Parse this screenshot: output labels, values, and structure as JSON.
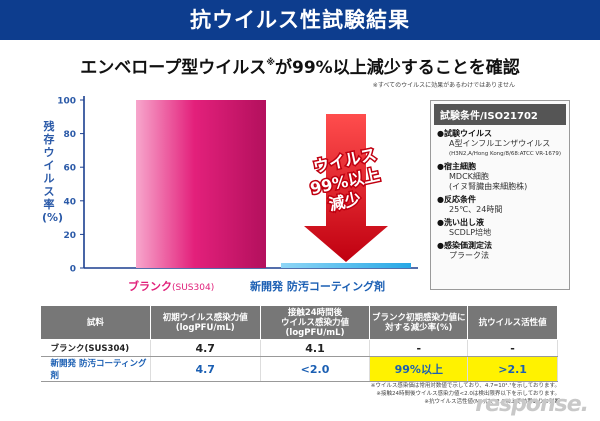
{
  "header": {
    "title": "抗ウイルス性試験結果"
  },
  "subtitle": {
    "main": "エンベロープ型ウイルス",
    "mark": "※",
    "rest": "が99%以上減少することを確認"
  },
  "footnote_top": "※すべてのウイルスに効果があるわけではありません",
  "chart_data": {
    "type": "bar",
    "title": "",
    "ylabel": "残存ウイルス率(%)",
    "ylim": [
      0,
      100
    ],
    "yticks": [
      0,
      20,
      40,
      60,
      80,
      100
    ],
    "categories": [
      "ブランク(SUS304)",
      "新開発 防汚コーティング剤"
    ],
    "values": [
      100,
      1
    ],
    "colors": [
      "#e3207b",
      "#27a8e6"
    ],
    "annotation": {
      "lines": [
        "ウイルス",
        "99%以上",
        "減少"
      ],
      "arrow_color": "#e3001b"
    }
  },
  "bar_labels": {
    "blank_main": "ブランク",
    "blank_sub": "(SUS304)",
    "new": "新開発 防汚コーティング剤"
  },
  "conditions": {
    "title": "試験条件/ISO21702",
    "items": [
      {
        "head": "●試験ウイルス",
        "vals": [
          "A型インフルエンザウイルス"
        ],
        "small": "(H3N2,A/Hong Kong/8/68:ATCC VR-1679)"
      },
      {
        "head": "●宿主細胞",
        "vals": [
          "MDCK細胞",
          "(イヌ腎臓由来細胞株)"
        ]
      },
      {
        "head": "●反応条件",
        "vals": [
          "25℃、24時間"
        ]
      },
      {
        "head": "●洗い出し液",
        "vals": [
          "SCDLP培地"
        ]
      },
      {
        "head": "●感染価測定法",
        "vals": [
          "プラーク法"
        ]
      }
    ]
  },
  "table": {
    "headers": [
      "試料",
      "初期ウイルス感染力値|(logPFU/mL)",
      "接触24時間後|ウイルス感染力値|(logPFU/mL)",
      "ブランク初期感染力値に|対する減少率(%)",
      "抗ウイルス活性値"
    ],
    "rows": [
      [
        "ブランク(SUS304)",
        "4.7",
        "4.1",
        "-",
        "-"
      ],
      [
        "新開発 防汚コーティング剤",
        "4.7",
        "<2.0",
        "99%以上",
        ">2.1"
      ]
    ]
  },
  "notes": [
    "※ウイルス感染価は常用対数値で示しており、4.7=10⁴.⁷を示しております。",
    "※接触24時間後ウイルス感染力値<2.0は検出限界以下を示しております。",
    "※抗ウイルス活性値(Mv)は、2.0以上で効果ありと判断"
  ],
  "watermark": "response."
}
